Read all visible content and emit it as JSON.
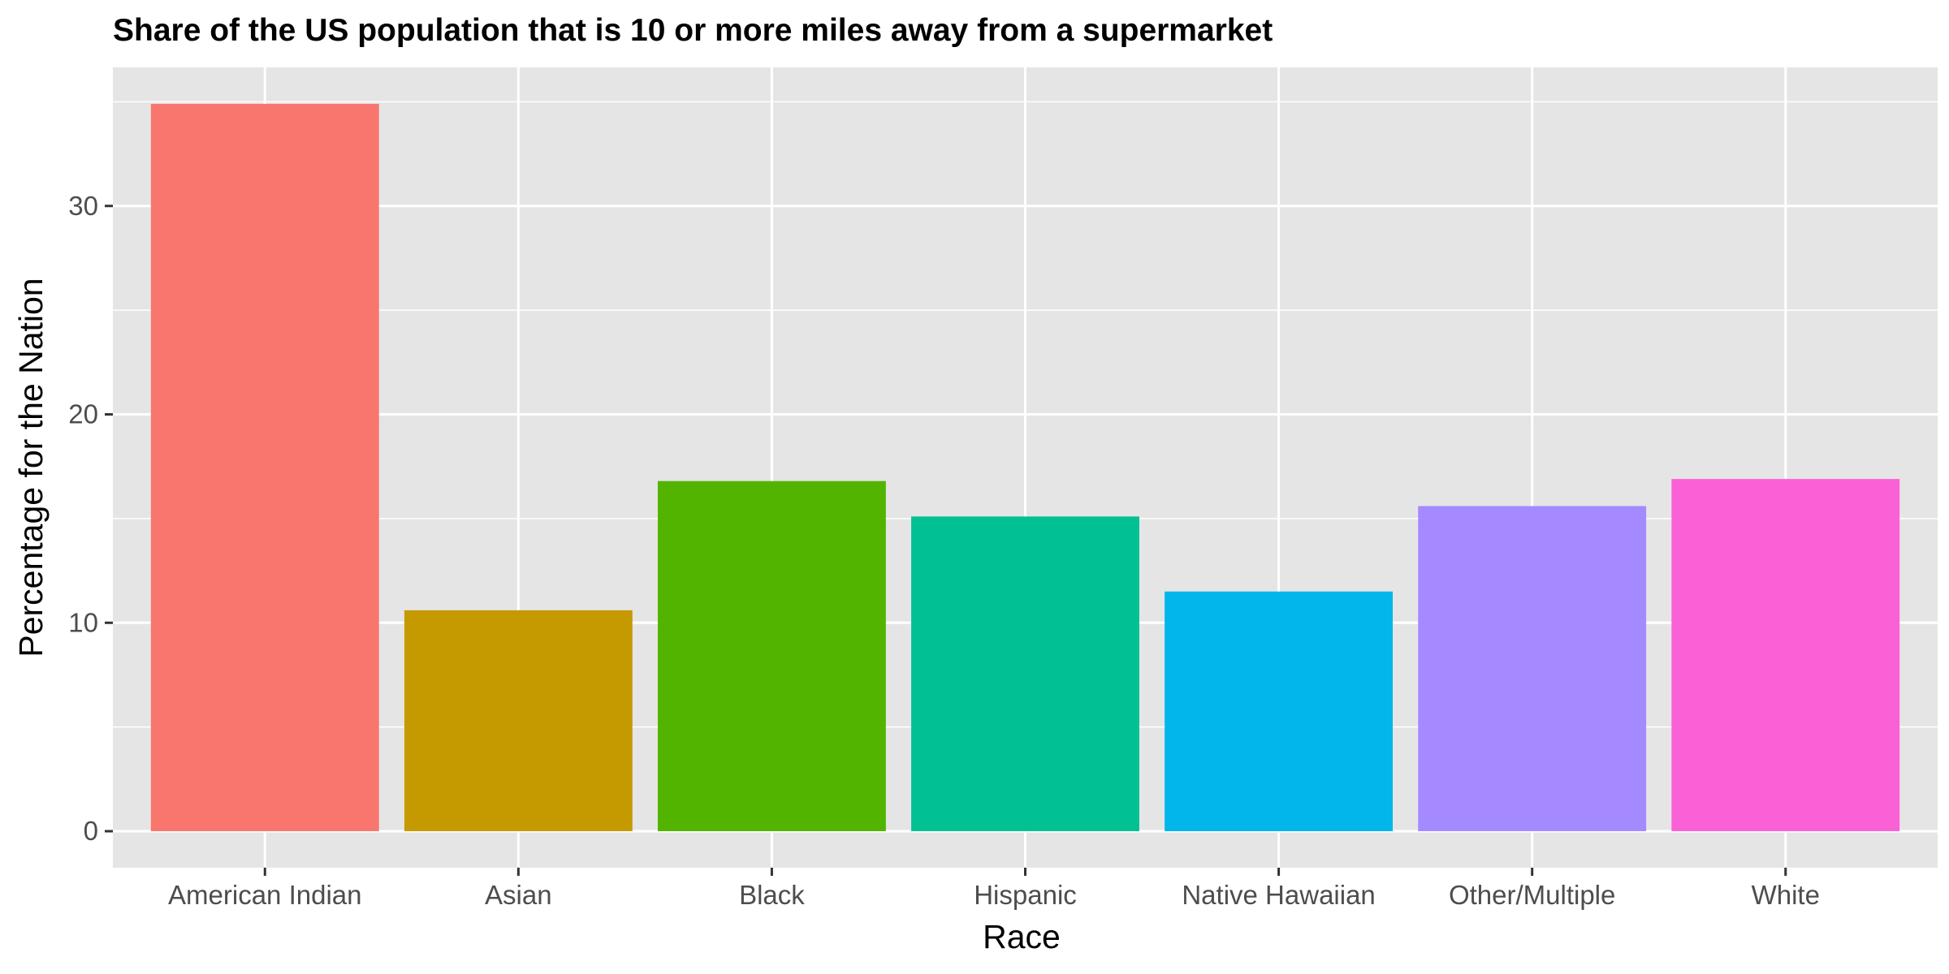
{
  "chart_data": {
    "type": "bar",
    "title": "Share of the US population that is 10 or more miles away from a supermarket",
    "xlabel": "Race",
    "ylabel": "Percentage for the Nation",
    "categories": [
      "American Indian",
      "Asian",
      "Black",
      "Hispanic",
      "Native Hawaiian",
      "Other/Multiple",
      "White"
    ],
    "values": [
      34.9,
      10.6,
      16.8,
      15.1,
      11.5,
      15.6,
      16.9
    ],
    "colors": [
      "#F8766D",
      "#C49A00",
      "#53B400",
      "#00C094",
      "#00B6EB",
      "#A58AFF",
      "#FB61D7"
    ],
    "y_ticks": [
      0,
      10,
      20,
      30
    ],
    "y_tick_labels": [
      "0",
      "10",
      "20",
      "30"
    ],
    "ylim": [
      -1.75,
      36.65
    ],
    "grid": true,
    "legend": "none",
    "panel_background": "#E5E5E5",
    "gridline_color": "#FFFFFF"
  }
}
